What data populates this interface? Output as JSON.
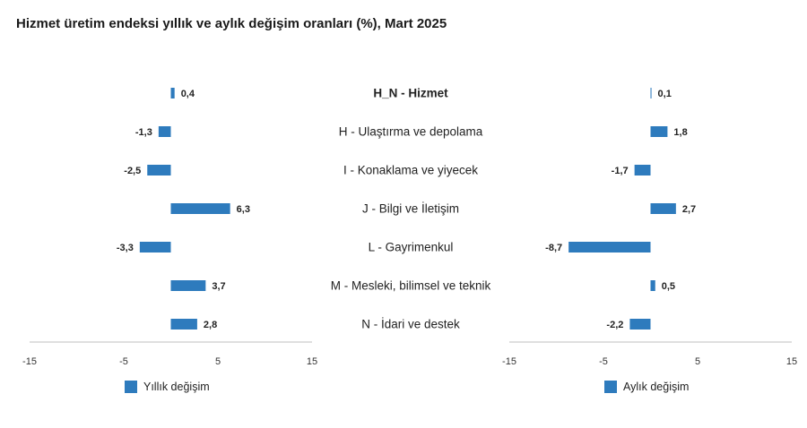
{
  "title": "Hizmet üretim endeksi yıllık ve aylık değişim oranları (%), Mart 2025",
  "colors": {
    "bar": "#2e7bbd",
    "axis": "#bfbfbf"
  },
  "chart_data": [
    {
      "type": "bar",
      "orientation": "horizontal",
      "categories": [
        "H_N - Hizmet",
        "H - Ulaştırma ve depolama",
        "I - Konaklama ve yiyecek",
        "J - Bilgi ve İletişim",
        "L - Gayrimenkul",
        "M - Mesleki, bilimsel ve teknik",
        "N - İdari ve destek"
      ],
      "series": [
        {
          "name": "Yıllık değişim",
          "values": [
            0.4,
            -1.3,
            -2.5,
            6.3,
            -3.3,
            3.7,
            2.8
          ]
        }
      ],
      "value_labels": [
        "0,4",
        "-1,3",
        "-2,5",
        "6,3",
        "-3,3",
        "3,7",
        "2,8"
      ],
      "xlim": [
        -15,
        15
      ],
      "xticks": [
        "-15",
        "-5",
        "5",
        "15"
      ],
      "legend": "bottom-left"
    },
    {
      "type": "bar",
      "orientation": "horizontal",
      "categories": [
        "H_N - Hizmet",
        "H - Ulaştırma ve depolama",
        "I - Konaklama ve yiyecek",
        "J - Bilgi ve İletişim",
        "L - Gayrimenkul",
        "M - Mesleki, bilimsel ve teknik",
        "N - İdari ve destek"
      ],
      "series": [
        {
          "name": "Aylık değişim",
          "values": [
            0.1,
            1.8,
            -1.7,
            2.7,
            -8.7,
            0.5,
            -2.2
          ]
        }
      ],
      "value_labels": [
        "0,1",
        "1,8",
        "-1,7",
        "2,7",
        "-8,7",
        "0,5",
        "-2,2"
      ],
      "xlim": [
        -15,
        15
      ],
      "xticks": [
        "-15",
        "-5",
        "5",
        "15"
      ],
      "legend": "bottom-left"
    }
  ]
}
